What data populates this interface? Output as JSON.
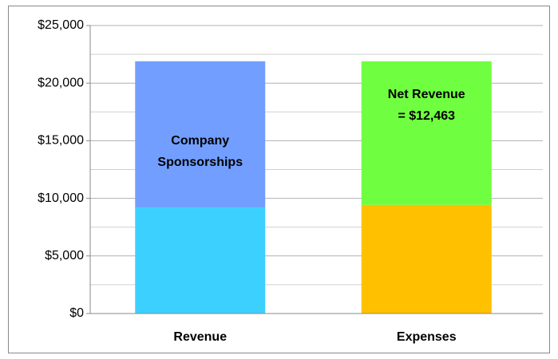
{
  "chart_data": {
    "type": "stacked_bar",
    "categories": [
      "Revenue",
      "Expenses"
    ],
    "series": [
      {
        "color": "#3cd0ff",
        "values": [
          9200,
          null
        ]
      },
      {
        "color": "#729fff",
        "values": [
          12700,
          null
        ],
        "labels": [
          "Company",
          "Sponsorships"
        ]
      },
      {
        "color": "#ffc000",
        "values": [
          null,
          9437
        ]
      },
      {
        "color": "#70ff40",
        "values": [
          null,
          12463
        ],
        "labels": [
          "Net Revenue",
          "= $12,463"
        ]
      }
    ],
    "ylim": [
      0,
      25000
    ],
    "yticks": [
      {
        "value": 0,
        "label": "$0"
      },
      {
        "value": 5000,
        "label": "$5,000"
      },
      {
        "value": 10000,
        "label": "$10,000"
      },
      {
        "value": 15000,
        "label": "$15,000"
      },
      {
        "value": 20000,
        "label": "$20,000"
      },
      {
        "value": 25000,
        "label": "$25,000"
      }
    ],
    "minor_grid": [
      2500,
      7500,
      12500,
      17500,
      22500
    ],
    "grid": true
  }
}
